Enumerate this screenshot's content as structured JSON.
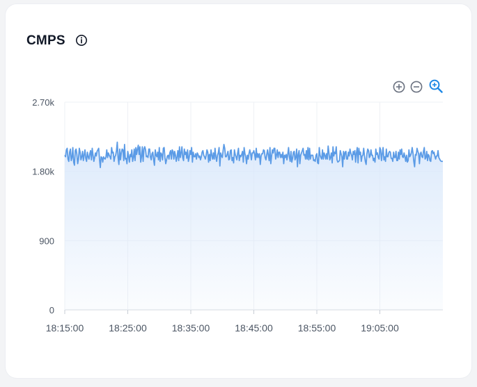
{
  "card": {
    "title": "CMPS",
    "info_icon": "info-circle-icon",
    "toolbar": {
      "zoom_in_icon": "zoom-in-plus-icon",
      "zoom_out_icon": "zoom-out-minus-icon",
      "zoom_reset_icon": "magnifier-zoom-icon"
    }
  },
  "chart_data": {
    "type": "area",
    "title": "CMPS",
    "xlabel": "",
    "ylabel": "",
    "ylim": [
      0,
      2700
    ],
    "yticks": [
      0,
      900,
      1800,
      2700
    ],
    "ytick_labels": [
      "0",
      "900",
      "1.80k",
      "2.70k"
    ],
    "xticks": [
      "18:15:00",
      "18:25:00",
      "18:35:00",
      "18:45:00",
      "18:55:00",
      "19:05:00"
    ],
    "x_start": "18:15:00",
    "x_end": "19:15:00",
    "series_color": "#5b9be6",
    "fill_color": "#dbe9fb",
    "grid": true,
    "values": [
      2010,
      1990,
      2080,
      2100,
      1960,
      1930,
      2050,
      2090,
      1940,
      1980,
      2110,
      1920,
      1880,
      2070,
      2090,
      2020,
      1900,
      1960,
      2100,
      2050,
      1950,
      1990,
      2060,
      1940,
      2010,
      2080,
      1970,
      1930,
      2050,
      1990,
      1960,
      2030,
      2070,
      1950,
      2100,
      2010,
      1930,
      1980,
      2040,
      2000,
      2060,
      2080,
      2100,
      1960,
      1850,
      1990,
      1980,
      1920,
      1990,
      1970,
      1960,
      1990,
      2080,
      1980,
      2040,
      2010,
      1990,
      1960,
      2110,
      2040,
      2050,
      1930,
      1990,
      2010,
      2070,
      2180,
      1980,
      1890,
      2090,
      1950,
      2040,
      2090,
      2080,
      1940,
      2150,
      1960,
      1970,
      1900,
      2060,
      2000,
      1920,
      2020,
      1990,
      2080,
      1930,
      1980,
      2090,
      1940,
      2110,
      2020,
      2090,
      2140,
      2020,
      2120,
      1920,
      1990,
      2120,
      1930,
      2090,
      2120,
      2080,
      1990,
      2000,
      1980,
      2090,
      2090,
      1990,
      1950,
      2030,
      2050,
      1950,
      1880,
      2080,
      2010,
      1990,
      2050,
      1950,
      2110,
      1930,
      2040,
      2020,
      1950,
      2100,
      2110,
      1980,
      1900,
      1950,
      2000,
      2010,
      1960,
      2040,
      2070,
      1960,
      2080,
      2060,
      1960,
      2060,
      2010,
      1930,
      1990,
      2070,
      1940,
      2120,
      1980,
      2040,
      2120,
      1980,
      1940,
      2090,
      2020,
      2050,
      1970,
      2080,
      1930,
      1980,
      2070,
      2020,
      2110,
      1920,
      2050,
      1990,
      1990,
      2030,
      1960,
      2040,
      2020,
      1980,
      2000,
      1950,
      1990,
      2050,
      2070,
      2010,
      1990,
      1960,
      2010,
      2080,
      2050,
      1920,
      2020,
      1940,
      2080,
      2010,
      1960,
      2040,
      1960,
      2100,
      1990,
      1930,
      2010,
      2040,
      2110,
      1870,
      2040,
      2000,
      1980,
      2070,
      2150,
      2100,
      1990,
      1990,
      2020,
      2060,
      1950,
      1960,
      2070,
      2080,
      1940,
      1980,
      1910,
      2080,
      2020,
      1990,
      1950,
      2040,
      2100,
      1940,
      2010,
      1990,
      2020,
      2060,
      1920,
      2110,
      2030,
      1990,
      1900,
      2010,
      1960,
      2030,
      2080,
      2030,
      1950,
      2040,
      2040,
      2070,
      2020,
      1950,
      2100,
      1980,
      2030,
      1980,
      2030,
      1890,
      2000,
      2030,
      2030,
      2080,
      2070,
      1980,
      1950,
      2020,
      2080,
      2010,
      1940,
      2110,
      1900,
      2000,
      2080,
      2040,
      2100,
      2100,
      1960,
      2010,
      2080,
      1980,
      2050,
      2050,
      1980,
      2020,
      1980,
      2050,
      1900,
      2010,
      1980,
      2020,
      1950,
      2020,
      2110,
      1990,
      1930,
      2060,
      1920,
      1970,
      2050,
      2060,
      1950,
      1980,
      2090,
      1860,
      2020,
      2070,
      1900,
      2010,
      2040,
      2070,
      2100,
      2010,
      2020,
      1960,
      2070,
      1960,
      2110,
      1950,
      2100,
      1960,
      2010,
      2010,
      2010,
      1940,
      1950,
      1930,
      2010,
      2030,
      1910,
      1900,
      2110,
      2010,
      1980,
      1960,
      2080,
      1960,
      2040,
      2010,
      1960,
      2030,
      1960,
      2130,
      2040,
      1950,
      1980,
      2040,
      1910,
      2120,
      2000,
      2050,
      2030,
      2120,
      1950,
      1920,
      1930,
      1940,
      2070,
      2030,
      1990,
      1860,
      2060,
      1960,
      2050,
      2060,
      1960,
      1960,
      2050,
      2000,
      2090,
      2040,
      2010,
      1950,
      2060,
      2020,
      2070,
      1920,
      2040,
      2110,
      1910,
      2100,
      2020,
      2050,
      1930,
      2000,
      2010,
      2100,
      2000,
      1930,
      1890,
      2030,
      2090,
      2070,
      1980,
      2000,
      2080,
      2010,
      2010,
      1940,
      1970,
      1920,
      2090,
      2020,
      2040,
      1980,
      1960,
      2110,
      2080,
      1940,
      2030,
      2110,
      1950,
      1990,
      1930,
      2090,
      1990,
      1990,
      2040,
      2060,
      2050,
      1970,
      1970,
      1930,
      2050,
      1980,
      1980,
      2060,
      1940,
      1940,
      2050,
      1960,
      2080,
      2020,
      2090,
      1990,
      1980,
      2040,
      1990,
      1930,
      2010,
      1920,
      1940,
      2080,
      1990,
      2010,
      2040,
      2110,
      2040,
      1930,
      1860,
      2020,
      2010,
      2100,
      2060,
      2030,
      1900,
      2030,
      2050,
      1990,
      1980,
      2060,
      2110,
      1960,
      1980,
      2060,
      1940,
      2020,
      2000,
      1940,
      1930,
      2060,
      2070,
      2030,
      2050,
      2000,
      1960,
      2000,
      2000,
      2070,
      1980,
      1960,
      1940,
      1930,
      1930,
      1930
    ]
  }
}
